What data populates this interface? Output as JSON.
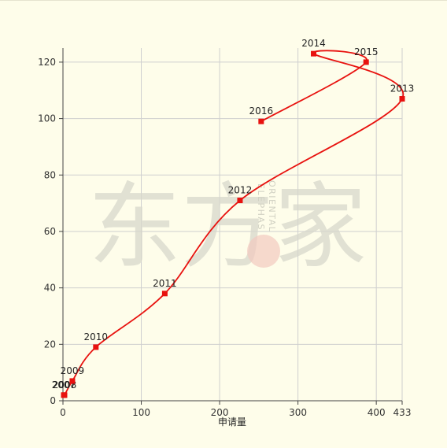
{
  "chart_data": {
    "type": "line",
    "xlabel": "申请量",
    "ylabel": "",
    "xlim": [
      0,
      433
    ],
    "ylim": [
      0,
      125
    ],
    "x_ticks": [
      0,
      100,
      200,
      300,
      400,
      433
    ],
    "y_ticks": [
      0,
      20,
      40,
      60,
      80,
      100,
      120
    ],
    "grid": true,
    "smooth": true,
    "series": [
      {
        "color": "#e8120f",
        "points": [
          {
            "label": "2007",
            "x": 1,
            "y": 2
          },
          {
            "label": "2008",
            "x": 2,
            "y": 2
          },
          {
            "label": "2009",
            "x": 12,
            "y": 7
          },
          {
            "label": "2010",
            "x": 42,
            "y": 19
          },
          {
            "label": "2011",
            "x": 130,
            "y": 38
          },
          {
            "label": "2012",
            "x": 226,
            "y": 71
          },
          {
            "label": "2013",
            "x": 433,
            "y": 107
          },
          {
            "label": "2014",
            "x": 320,
            "y": 123
          },
          {
            "label": "2015",
            "x": 387,
            "y": 120
          },
          {
            "label": "2016",
            "x": 253,
            "y": 99
          }
        ]
      }
    ]
  },
  "watermark": {
    "chinese": "东方家",
    "english_line1": "ORIENTAL",
    "english_line2": "ELEPHAS",
    "color": "#d8d8cc",
    "accent": "#f2c9bf"
  }
}
